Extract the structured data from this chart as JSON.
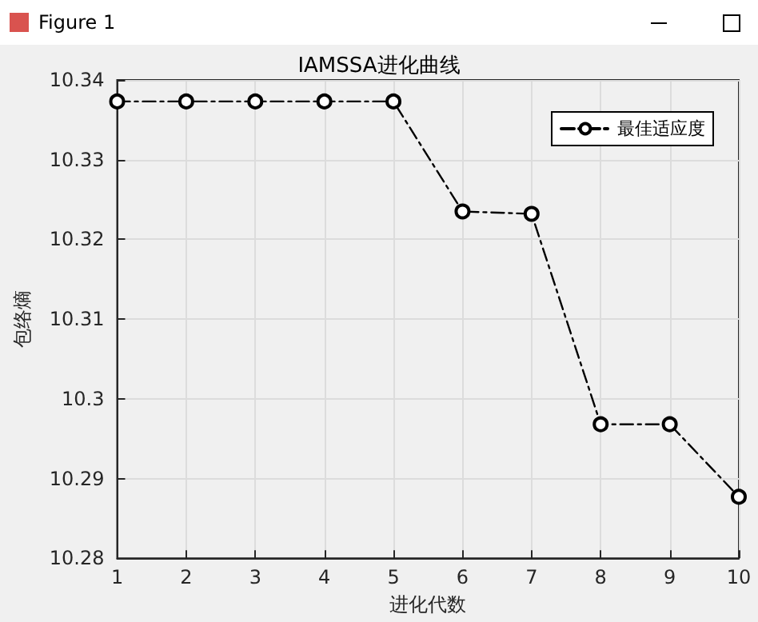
{
  "chart_data": {
    "type": "line",
    "title": "IAMSSA进化曲线",
    "xlabel": "进化代数",
    "ylabel": "包络熵",
    "annotations": [
      "Figure 1"
    ],
    "x": [
      1,
      2,
      3,
      4,
      5,
      6,
      7,
      8,
      9,
      10
    ],
    "series": [
      {
        "name": "最佳适应度",
        "color": "#000000",
        "values": [
          10.3373,
          10.3373,
          10.3373,
          10.3373,
          10.3373,
          10.3235,
          10.3232,
          10.2968,
          10.2968,
          10.2877
        ]
      }
    ],
    "xlim": [
      1,
      10
    ],
    "xticks": [
      1,
      2,
      3,
      4,
      5,
      6,
      7,
      8,
      9,
      10
    ],
    "ylim": [
      10.28,
      10.34
    ],
    "yticks": [
      10.28,
      10.29,
      10.3,
      10.31,
      10.32,
      10.33,
      10.34
    ],
    "grid": true,
    "legend": "top right",
    "marker": "circle",
    "line_style": "dashed"
  }
}
